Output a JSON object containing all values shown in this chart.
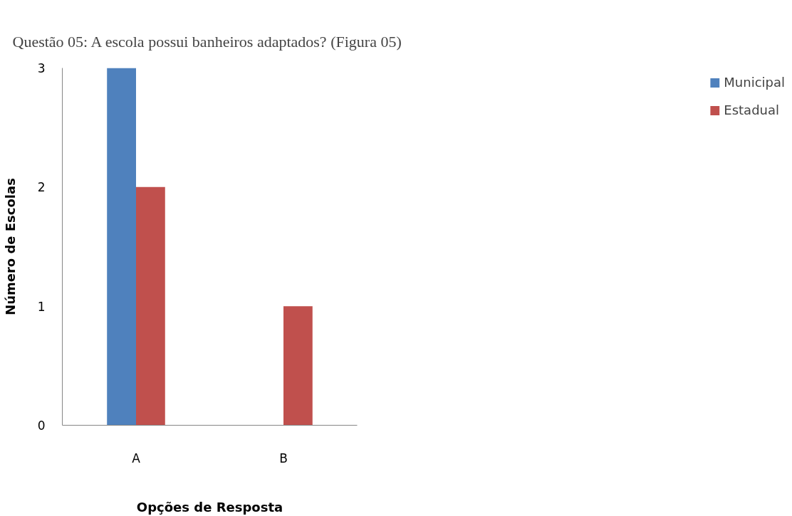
{
  "chart_data": {
    "type": "bar",
    "title": "Questão 05: A escola possui banheiros adaptados? (Figura 05)",
    "xlabel": "Opções de Resposta",
    "ylabel": "Número de Escolas",
    "categories": [
      "A",
      "B"
    ],
    "series": [
      {
        "name": "Municipal",
        "color": "#4f81bd",
        "values": [
          3,
          0
        ]
      },
      {
        "name": "Estadual",
        "color": "#c0504d",
        "values": [
          2,
          1
        ]
      }
    ],
    "ylim": [
      0,
      3
    ],
    "yticks": [
      0,
      1,
      2,
      3
    ],
    "grid": false,
    "legend": "right"
  }
}
